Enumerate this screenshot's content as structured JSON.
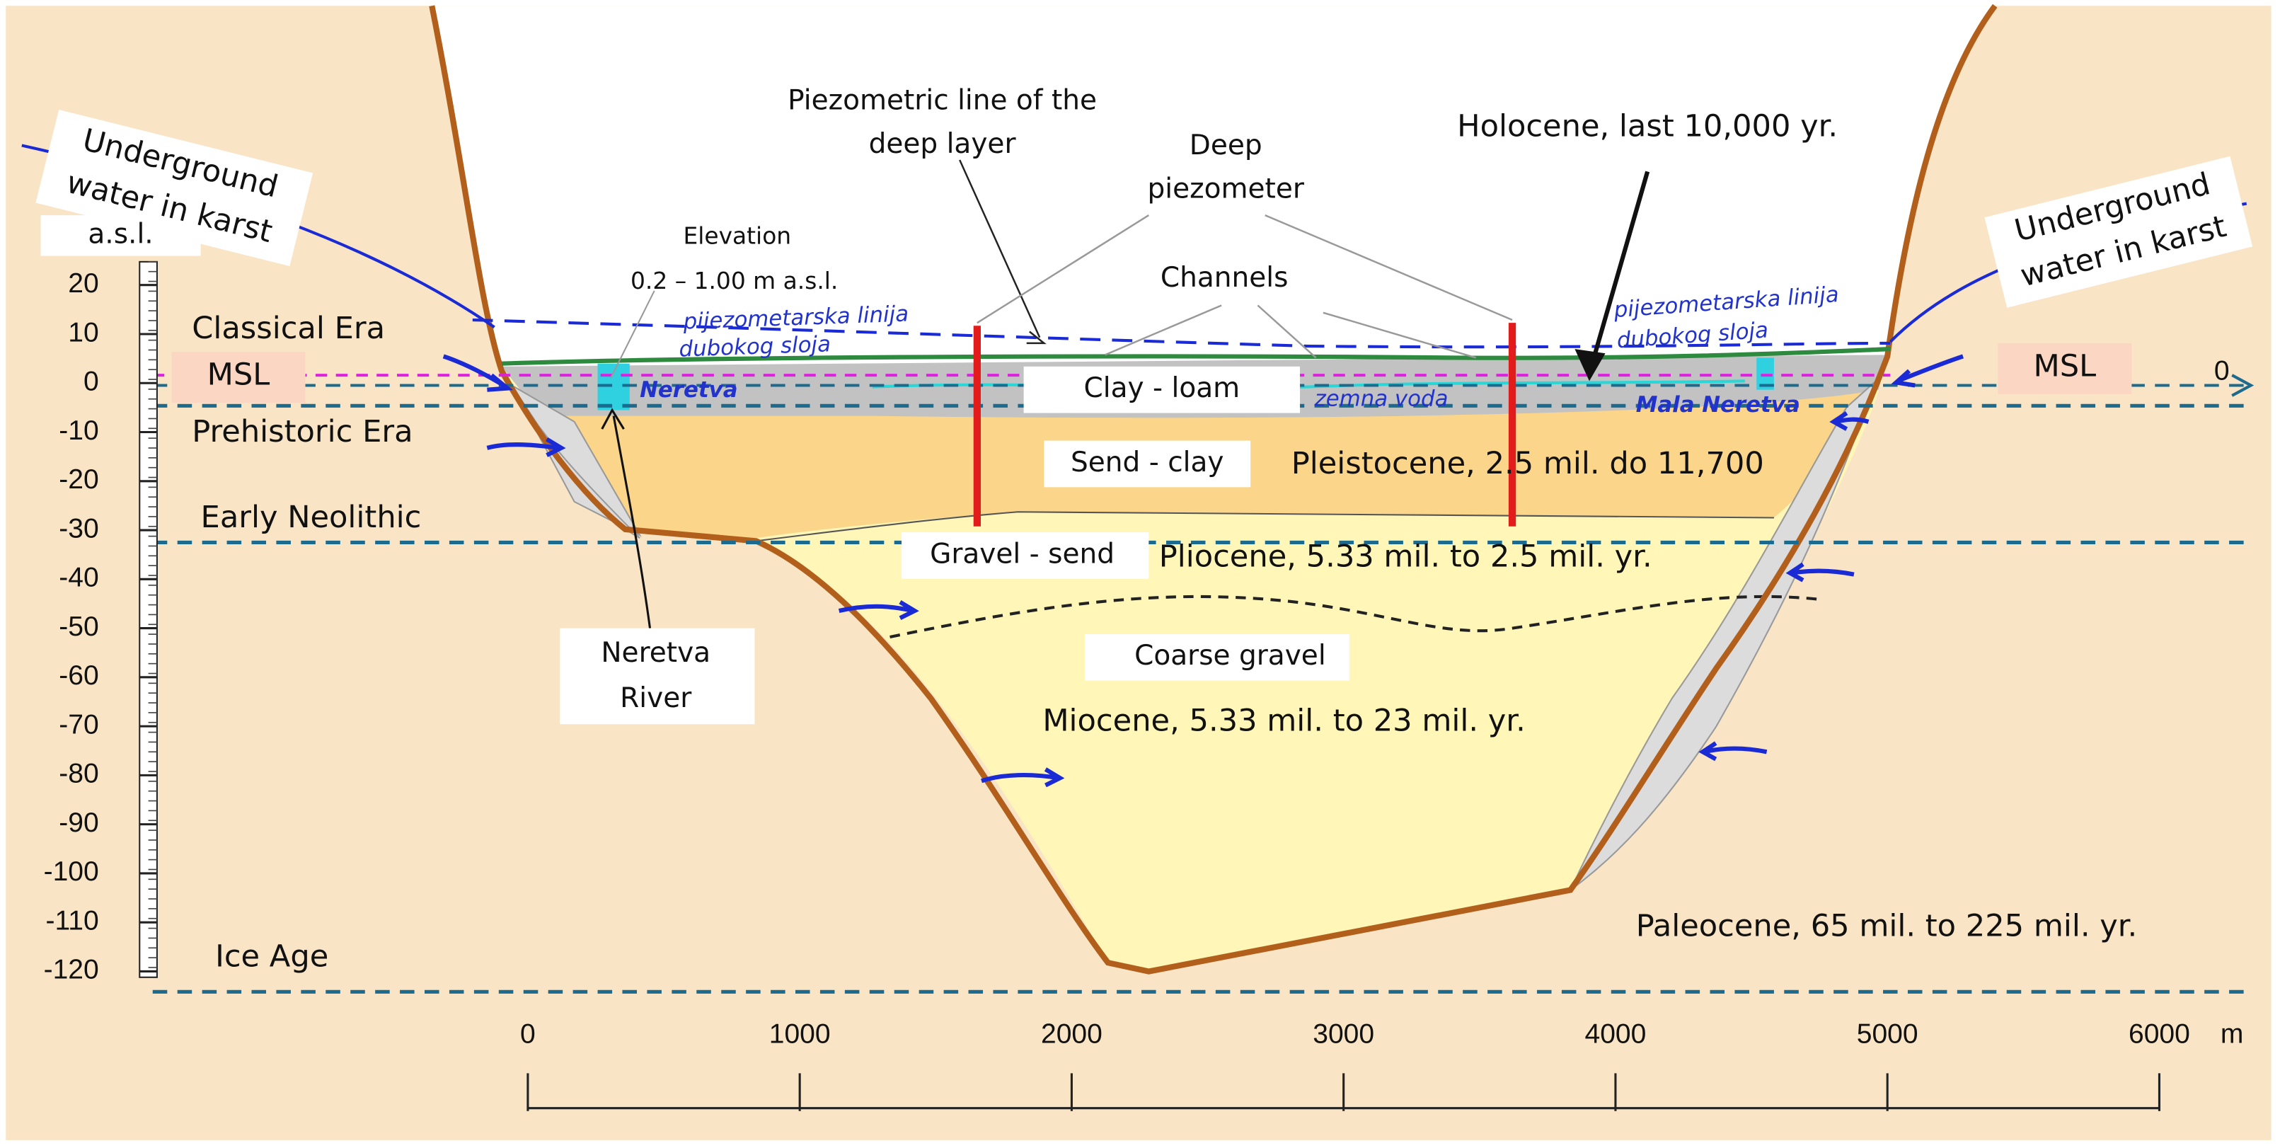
{
  "elevation_axis": {
    "unit": "a.s.l.",
    "ticks": [
      20,
      10,
      0,
      -10,
      -20,
      -30,
      -40,
      -50,
      -60,
      -70,
      -80,
      -90,
      -100,
      -110,
      -120
    ]
  },
  "distance_axis": {
    "unit": "m",
    "ticks": [
      0,
      1000,
      2000,
      3000,
      4000,
      5000,
      6000
    ]
  },
  "msl_zero": "0",
  "labels": {
    "underground_left": [
      "Underground",
      "water in karst"
    ],
    "underground_right": [
      "Underground",
      "water in karst"
    ],
    "piezometric_line": [
      "Piezometric line of the",
      "deep layer"
    ],
    "deep_piezometer": [
      "Deep",
      "piezometer"
    ],
    "holocene": "Holocene, last 10,000 yr.",
    "elevation": [
      "Elevation",
      "0.2 – 1.00 m a.s.l."
    ],
    "channels": "Channels",
    "classical_era": "Classical Era",
    "msl_left": "MSL",
    "msl_right": "MSL",
    "prehistoric_era": "Prehistoric Era",
    "early_neolithic": "Early Neolithic",
    "ice_age": "Ice Age",
    "pijezo_left": [
      "pijezometarska linija",
      "dubokog sloja"
    ],
    "pijezo_right": [
      "pijezometarska linija",
      "dubokog sloja"
    ],
    "neretva": "Neretva",
    "clay_loam": "Clay - loam",
    "zemna_voda": "zemna voda",
    "mala_neretva": "Mala Neretva",
    "send_clay": "Send - clay",
    "pleistocene": "Pleistocene, 2.5 mil. do 11,700",
    "gravel_send": "Gravel - send",
    "pliocene": "Pliocene, 5.33 mil. to 2.5 mil. yr.",
    "coarse_gravel": "Coarse gravel",
    "miocene": "Miocene, 5.33 mil. to 23 mil. yr.",
    "neretva_river": [
      "Neretva",
      "River"
    ],
    "paleocene": "Paleocene, 65 mil. to 225 mil. yr."
  }
}
